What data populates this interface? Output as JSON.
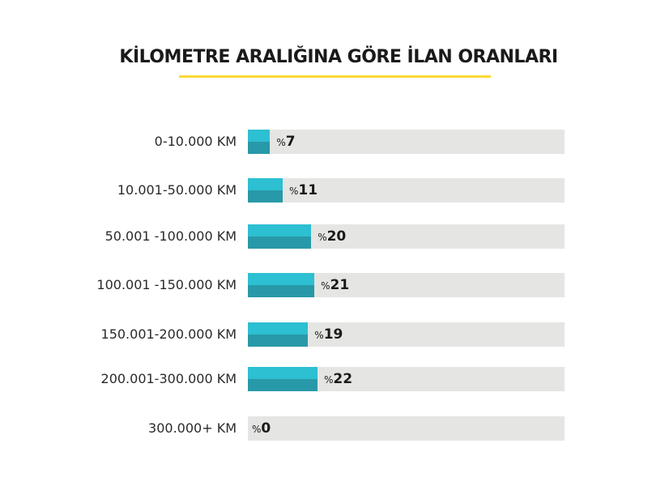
{
  "chart_data": {
    "type": "bar",
    "orientation": "horizontal",
    "title": "KİLOMETRE ARALIĞINA GÖRE İLAN ORANLARI",
    "categories": [
      "0-10.000 KM",
      "10.001-50.000 KM",
      "50.001 -100.000 KM",
      "100.001 -150.000 KM",
      "150.001-200.000 KM",
      "200.001-300.000 KM",
      "300.000+ KM"
    ],
    "values": [
      7,
      11,
      20,
      21,
      19,
      22,
      0
    ],
    "value_prefix": "%",
    "xlim": [
      0,
      100
    ],
    "grid": false,
    "colors": {
      "bar_top": "#2dbfd2",
      "bar_bottom": "#2899a8",
      "track": "#e5e5e3",
      "title_underline": "#fdd835"
    }
  }
}
